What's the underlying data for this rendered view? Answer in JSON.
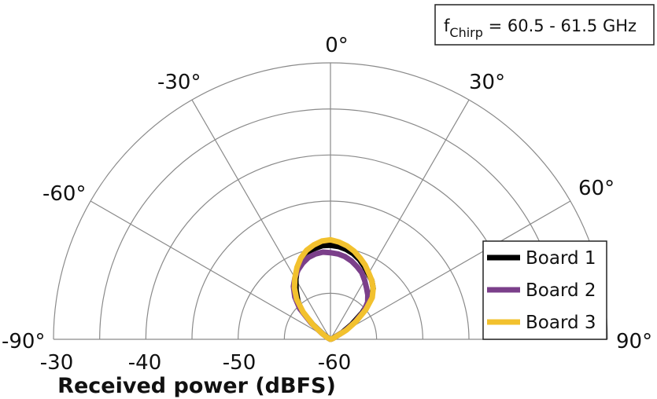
{
  "chart_data": {
    "type": "polar",
    "annotation": {
      "main": "f",
      "sub": "Chirp",
      "rest": " = 60.5 - 61.5 GHz"
    },
    "xlabel": "Received power (dBFS)",
    "r_ticks": [
      -30,
      -40,
      -50,
      -60
    ],
    "r_range": [
      -60,
      -30
    ],
    "angle_ticks": [
      -90,
      -60,
      -30,
      0,
      30,
      60,
      90
    ],
    "angle_labels": [
      "-90°",
      "-60°",
      "-30°",
      "0°",
      "30°",
      "60°",
      "90°"
    ],
    "legend_position": "bottom-right",
    "series": [
      {
        "name": "Board 1",
        "color": "#000000",
        "points": [
          [
            -90,
            -60
          ],
          [
            -80,
            -60
          ],
          [
            -70,
            -60
          ],
          [
            -60,
            -59.7
          ],
          [
            -55,
            -59
          ],
          [
            -50,
            -57.5
          ],
          [
            -45,
            -55.5
          ],
          [
            -40,
            -54.5
          ],
          [
            -35,
            -53.5
          ],
          [
            -30,
            -52.5
          ],
          [
            -25,
            -51.5
          ],
          [
            -20,
            -50.8
          ],
          [
            -15,
            -50.3
          ],
          [
            -10,
            -50.0
          ],
          [
            -5,
            -49.8
          ],
          [
            0,
            -49.8
          ],
          [
            5,
            -49.9
          ],
          [
            10,
            -50.1
          ],
          [
            15,
            -50.4
          ],
          [
            20,
            -50.8
          ],
          [
            25,
            -51.3
          ],
          [
            30,
            -51.8
          ],
          [
            35,
            -52.2
          ],
          [
            40,
            -52.8
          ],
          [
            45,
            -53.8
          ],
          [
            50,
            -55.5
          ],
          [
            55,
            -57.2
          ],
          [
            60,
            -58.5
          ],
          [
            70,
            -59.8
          ],
          [
            80,
            -60
          ],
          [
            90,
            -60
          ]
        ]
      },
      {
        "name": "Board 2",
        "color": "#7b3f8a",
        "points": [
          [
            -90,
            -60
          ],
          [
            -80,
            -60
          ],
          [
            -70,
            -60
          ],
          [
            -60,
            -59.6
          ],
          [
            -55,
            -58.8
          ],
          [
            -50,
            -57.3
          ],
          [
            -45,
            -55.3
          ],
          [
            -40,
            -54.0
          ],
          [
            -35,
            -53.0
          ],
          [
            -30,
            -52.3
          ],
          [
            -25,
            -51.7
          ],
          [
            -20,
            -51.2
          ],
          [
            -15,
            -50.8
          ],
          [
            -10,
            -50.6
          ],
          [
            -5,
            -50.5
          ],
          [
            0,
            -50.6
          ],
          [
            5,
            -50.7
          ],
          [
            10,
            -50.9
          ],
          [
            15,
            -51.2
          ],
          [
            20,
            -51.6
          ],
          [
            25,
            -52.0
          ],
          [
            30,
            -52.6
          ],
          [
            35,
            -53.2
          ],
          [
            40,
            -53.7
          ],
          [
            45,
            -54.3
          ],
          [
            50,
            -55.3
          ],
          [
            55,
            -56.8
          ],
          [
            60,
            -58.2
          ],
          [
            70,
            -59.7
          ],
          [
            80,
            -60
          ],
          [
            90,
            -60
          ]
        ]
      },
      {
        "name": "Board 3",
        "color": "#f2c12e",
        "points": [
          [
            -90,
            -60
          ],
          [
            -80,
            -60
          ],
          [
            -70,
            -60
          ],
          [
            -60,
            -59.6
          ],
          [
            -55,
            -58.9
          ],
          [
            -50,
            -57.5
          ],
          [
            -45,
            -55.8
          ],
          [
            -40,
            -54.3
          ],
          [
            -35,
            -53.2
          ],
          [
            -30,
            -52.3
          ],
          [
            -25,
            -51.4
          ],
          [
            -20,
            -50.6
          ],
          [
            -15,
            -50.0
          ],
          [
            -10,
            -49.6
          ],
          [
            -5,
            -49.3
          ],
          [
            0,
            -49.2
          ],
          [
            5,
            -49.4
          ],
          [
            10,
            -49.7
          ],
          [
            15,
            -50.1
          ],
          [
            20,
            -50.6
          ],
          [
            25,
            -51.1
          ],
          [
            30,
            -51.7
          ],
          [
            35,
            -52.2
          ],
          [
            40,
            -52.8
          ],
          [
            45,
            -53.6
          ],
          [
            50,
            -55.0
          ],
          [
            55,
            -56.6
          ],
          [
            60,
            -58.0
          ],
          [
            70,
            -59.7
          ],
          [
            80,
            -60
          ],
          [
            90,
            -60
          ]
        ]
      }
    ]
  }
}
